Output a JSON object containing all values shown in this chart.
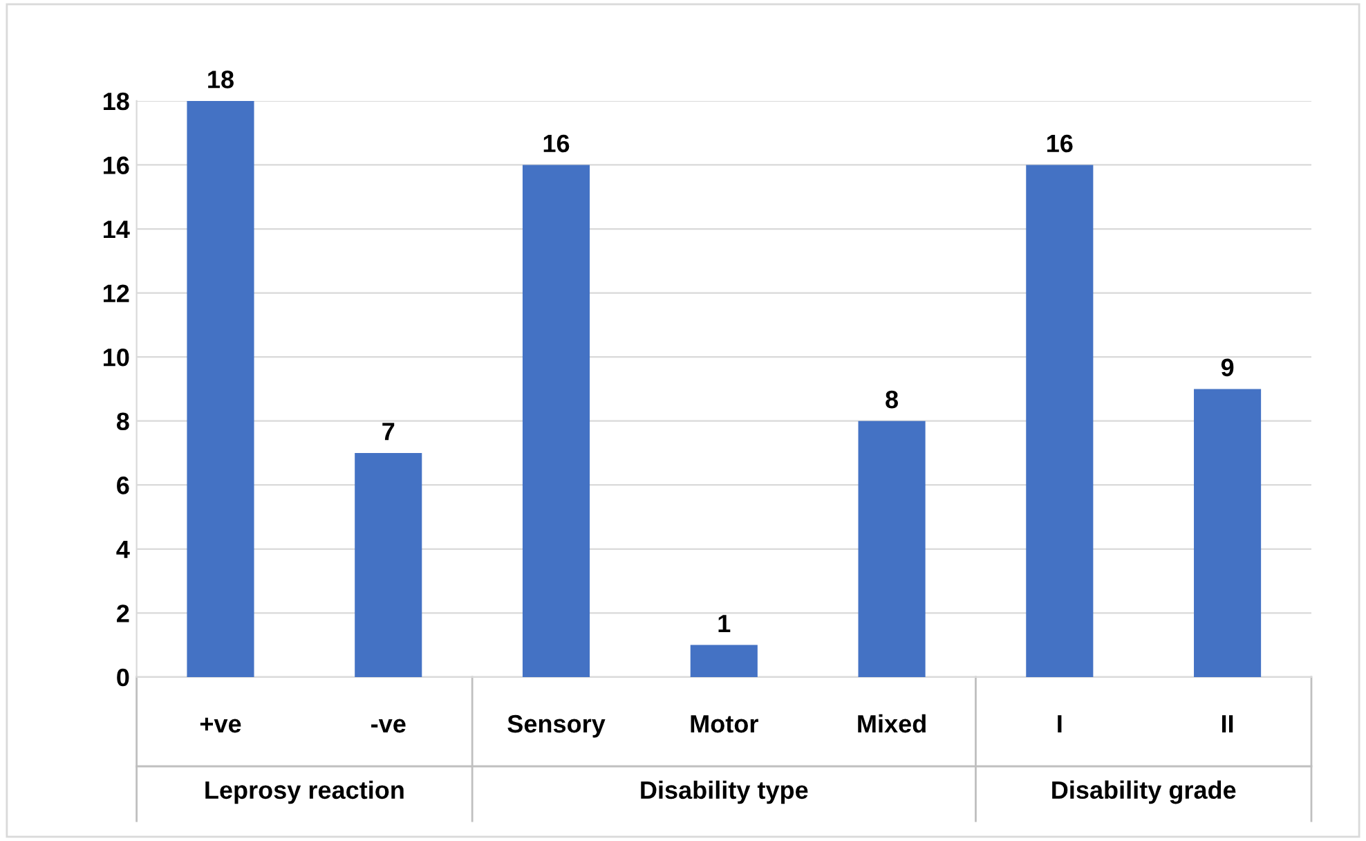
{
  "chart_data": {
    "type": "bar",
    "categories": [
      "+ve",
      "-ve",
      "Sensory",
      "Motor",
      "Mixed",
      "I",
      "II"
    ],
    "values": [
      18,
      7,
      16,
      1,
      8,
      16,
      9
    ],
    "color": "#4472c4",
    "ylim": [
      0,
      18
    ],
    "yticks": [
      0,
      2,
      4,
      6,
      8,
      10,
      12,
      14,
      16,
      18
    ],
    "grid": "y",
    "data_labels": true,
    "annotations": [
      "Leprosy reaction",
      "Disability type",
      "Disability grade"
    ]
  }
}
